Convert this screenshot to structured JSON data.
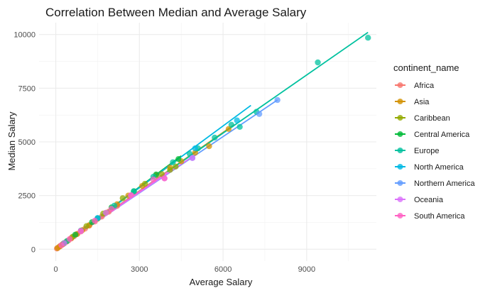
{
  "chart_data": {
    "type": "scatter",
    "title": "Correlation Between Median and Average Salary",
    "xlabel": "Average Salary",
    "ylabel": "Median Salary",
    "xlim": [
      -600,
      11500
    ],
    "ylim": [
      -550,
      10550
    ],
    "x_ticks": [
      0,
      3000,
      6000,
      9000
    ],
    "x_tick_labels": [
      "0",
      "3000",
      "6000",
      "9000"
    ],
    "y_ticks": [
      0,
      2500,
      5000,
      7500,
      10000
    ],
    "y_tick_labels": [
      "0",
      "2500",
      "5000",
      "7500",
      "10000"
    ],
    "grid": true,
    "legend_title": "continent_name",
    "legend_position": "right",
    "series": [
      {
        "name": "Africa",
        "color": "#F8766D",
        "points": [
          [
            40,
            35
          ],
          [
            90,
            80
          ],
          [
            150,
            140
          ],
          [
            220,
            200
          ],
          [
            300,
            270
          ],
          [
            380,
            350
          ],
          [
            460,
            420
          ],
          [
            550,
            500
          ],
          [
            650,
            600
          ],
          [
            780,
            720
          ],
          [
            900,
            830
          ],
          [
            1050,
            960
          ],
          [
            1200,
            1100
          ],
          [
            1400,
            1290
          ],
          [
            1650,
            1520
          ],
          [
            1900,
            1750
          ],
          [
            2200,
            2020
          ]
        ],
        "fit": [
          [
            0,
            0
          ],
          [
            2300,
            2100
          ]
        ]
      },
      {
        "name": "Asia",
        "color": "#D39200",
        "points": [
          [
            60,
            55
          ],
          [
            150,
            140
          ],
          [
            260,
            240
          ],
          [
            400,
            370
          ],
          [
            550,
            510
          ],
          [
            750,
            700
          ],
          [
            950,
            890
          ],
          [
            1200,
            1120
          ],
          [
            1500,
            1420
          ],
          [
            1800,
            1700
          ],
          [
            2200,
            2100
          ],
          [
            2600,
            2500
          ],
          [
            3100,
            2950
          ],
          [
            3600,
            3450
          ],
          [
            4100,
            3800
          ],
          [
            4500,
            4100
          ],
          [
            5000,
            4500
          ],
          [
            5500,
            4800
          ],
          [
            6200,
            5600
          ]
        ],
        "fit": [
          [
            0,
            0
          ],
          [
            6400,
            5800
          ]
        ]
      },
      {
        "name": "Caribbean",
        "color": "#93AA00",
        "points": [
          [
            250,
            240
          ],
          [
            600,
            580
          ],
          [
            1100,
            1080
          ],
          [
            1700,
            1660
          ],
          [
            2400,
            2380
          ],
          [
            3200,
            3050
          ],
          [
            3800,
            3500
          ],
          [
            4100,
            3700
          ],
          [
            4300,
            3850
          ]
        ],
        "fit": [
          [
            0,
            0
          ],
          [
            4400,
            4200
          ]
        ]
      },
      {
        "name": "Central America",
        "color": "#00BA38",
        "points": [
          [
            300,
            290
          ],
          [
            700,
            680
          ],
          [
            1300,
            1260
          ],
          [
            2000,
            1950
          ],
          [
            2800,
            2700
          ],
          [
            3600,
            3480
          ],
          [
            4400,
            4200
          ]
        ],
        "fit": [
          [
            0,
            0
          ],
          [
            4500,
            4350
          ]
        ]
      },
      {
        "name": "Europe",
        "color": "#00C19F",
        "points": [
          [
            400,
            380
          ],
          [
            900,
            870
          ],
          [
            1500,
            1450
          ],
          [
            2100,
            2030
          ],
          [
            2800,
            2700
          ],
          [
            3500,
            3380
          ],
          [
            4200,
            4050
          ],
          [
            4800,
            4450
          ],
          [
            5100,
            4700
          ],
          [
            5700,
            5200
          ],
          [
            6300,
            5800
          ],
          [
            6600,
            5700
          ],
          [
            7200,
            6400
          ],
          [
            9400,
            8700
          ],
          [
            11200,
            9850
          ]
        ],
        "fit": [
          [
            0,
            0
          ],
          [
            11200,
            10100
          ]
        ]
      },
      {
        "name": "North America",
        "color": "#00B9E3",
        "points": [
          [
            1500,
            1450
          ],
          [
            5000,
            4700
          ],
          [
            6500,
            6000
          ]
        ],
        "fit": [
          [
            0,
            0
          ],
          [
            7000,
            6700
          ]
        ]
      },
      {
        "name": "Northern America",
        "color": "#619CFF",
        "points": [
          [
            4900,
            4250
          ],
          [
            7300,
            6300
          ],
          [
            7950,
            6950
          ]
        ],
        "fit": [
          [
            0,
            0
          ],
          [
            7950,
            6950
          ]
        ]
      },
      {
        "name": "Oceania",
        "color": "#DB72FB",
        "points": [
          [
            300,
            280
          ],
          [
            900,
            850
          ],
          [
            1800,
            1700
          ],
          [
            2700,
            2500
          ],
          [
            3900,
            3300
          ],
          [
            4900,
            4250
          ]
        ],
        "fit": [
          [
            0,
            0
          ],
          [
            5000,
            4400
          ]
        ]
      },
      {
        "name": "South America",
        "color": "#FF61C3",
        "points": [
          [
            200,
            190
          ],
          [
            500,
            480
          ],
          [
            900,
            850
          ],
          [
            1400,
            1330
          ],
          [
            2000,
            1880
          ],
          [
            2700,
            2520
          ],
          [
            3500,
            3250
          ],
          [
            3900,
            3300
          ]
        ],
        "fit": [
          [
            0,
            0
          ],
          [
            4000,
            3600
          ]
        ]
      }
    ]
  }
}
